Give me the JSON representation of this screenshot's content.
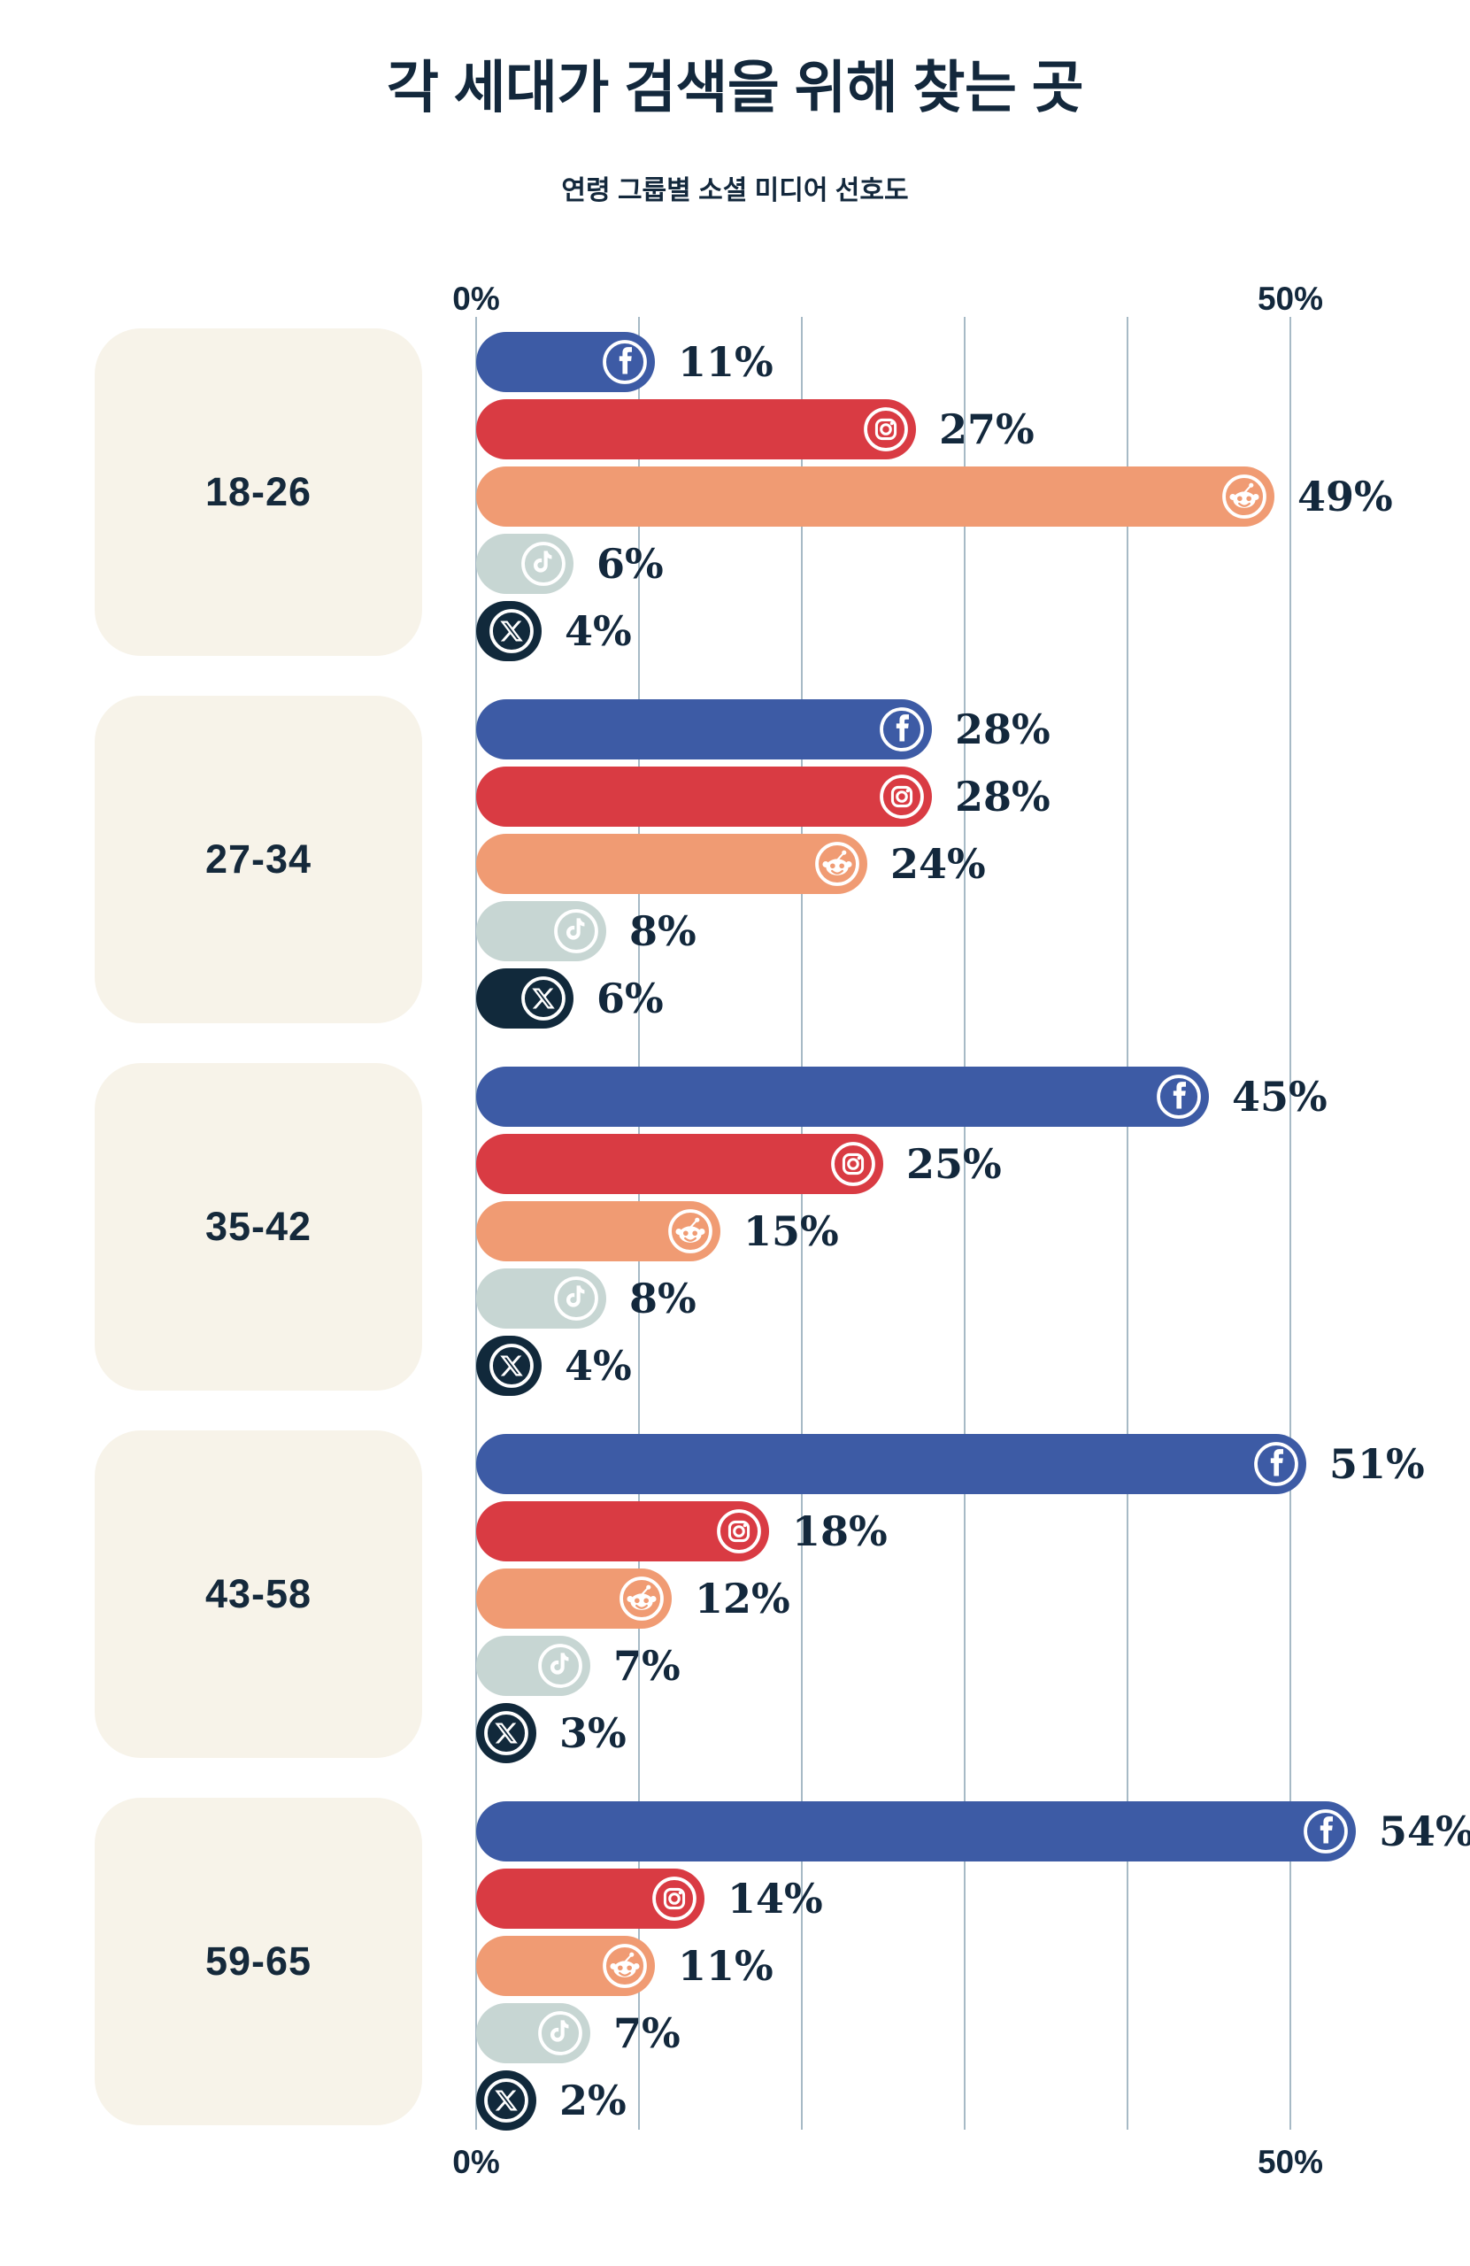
{
  "header": {
    "title": "각 세대가 검색을 위해 찾는 곳",
    "subtitle": "연령 그룹별 소셜 미디어 선호도"
  },
  "axis": {
    "top_left": "0%",
    "top_right": "50%",
    "bottom_left": "0%",
    "bottom_right": "50%"
  },
  "colors": {
    "text_navy": "#13283c",
    "facebook": "#3d5ba5",
    "instagram": "#d93b43",
    "reddit": "#f09b73",
    "tiktok": "#c7d6d3",
    "x": "#11293b",
    "card_bg": "#f7f3e9",
    "gridline": "#a7bac6",
    "background": "#ffffff"
  },
  "chart_data": {
    "type": "bar",
    "orientation": "horizontal",
    "title": "각 세대가 검색을 위해 찾는 곳",
    "subtitle": "연령 그룹별 소셜 미디어 선호도",
    "categories": [
      "18-26",
      "27-34",
      "35-42",
      "43-58",
      "59-65"
    ],
    "series": [
      {
        "name": "Facebook",
        "platform": "facebook",
        "values": [
          11,
          28,
          45,
          51,
          54
        ]
      },
      {
        "name": "Instagram",
        "platform": "instagram",
        "values": [
          27,
          28,
          25,
          18,
          14
        ]
      },
      {
        "name": "Reddit",
        "platform": "reddit",
        "values": [
          49,
          24,
          15,
          12,
          11
        ]
      },
      {
        "name": "TikTok",
        "platform": "tiktok",
        "values": [
          6,
          8,
          8,
          7,
          7
        ]
      },
      {
        "name": "X (Twitter)",
        "platform": "x",
        "values": [
          4,
          6,
          4,
          3,
          2
        ]
      }
    ],
    "value_suffix": "%",
    "xlim": [
      0,
      50
    ],
    "gridline_step": 10,
    "legend": "none"
  }
}
